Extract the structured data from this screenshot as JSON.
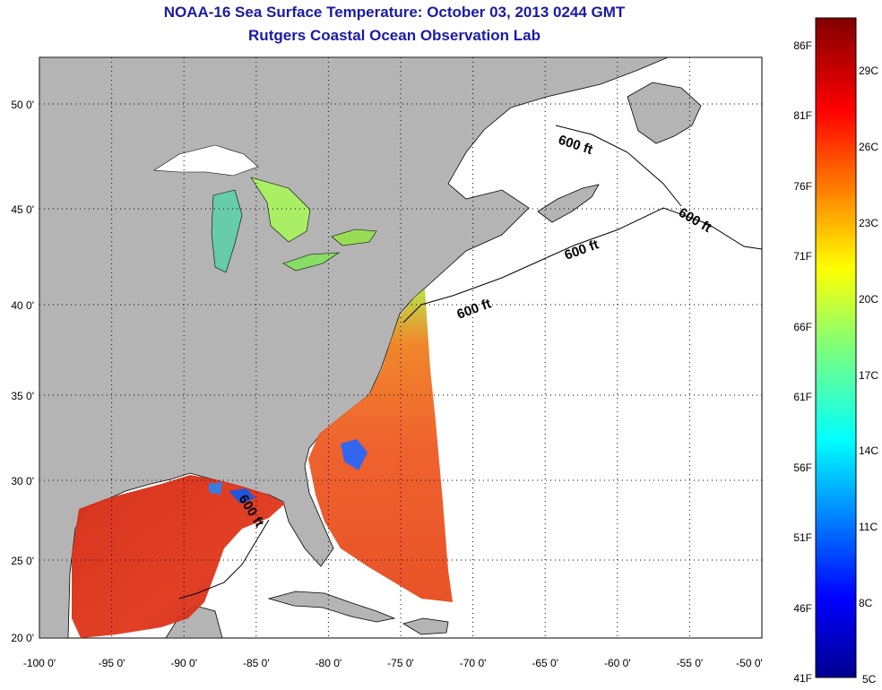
{
  "title": "NOAA-16 Sea Surface Temperature:  October 03, 2013 0244 GMT",
  "subtitle": "Rutgers Coastal Ocean Observation Lab",
  "map": {
    "lon_ticks": [
      "-100 0'",
      "-95 0'",
      "-90 0'",
      "-85 0'",
      "-80 0'",
      "-75 0'",
      "-70 0'",
      "-65 0'",
      "-60 0'",
      "-55 0'",
      "-50 0'"
    ],
    "lat_ticks": [
      "50 0'",
      "45 0'",
      "40 0'",
      "35 0'",
      "30 0'",
      "25 0'",
      "20 0'"
    ],
    "lon_range": [
      -100,
      -50
    ],
    "lat_range": [
      20,
      52.5
    ],
    "contour_label": "600 ft",
    "land_color": "#b4b4b4",
    "no_data_color": "#ffffff"
  },
  "colorbar": {
    "f_labels": [
      "86F",
      "81F",
      "76F",
      "71F",
      "66F",
      "61F",
      "56F",
      "51F",
      "46F",
      "41F"
    ],
    "c_labels": [
      "29C",
      "26C",
      "23C",
      "20C",
      "17C",
      "14C",
      "11C",
      "8C",
      "5C"
    ],
    "range_c": [
      5,
      31
    ]
  }
}
